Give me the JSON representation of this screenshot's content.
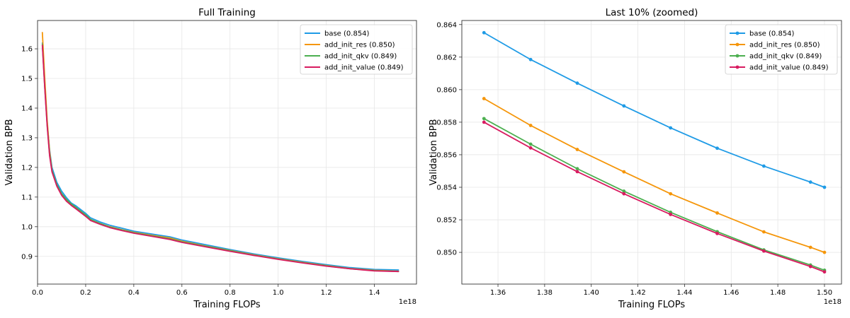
{
  "chart_data": [
    {
      "type": "line",
      "title": "Full Training",
      "xlabel": "Training FLOPs",
      "ylabel": "Validation BPB",
      "x_offset_label": "1e18",
      "xlim": [
        0.0,
        1.575
      ],
      "ylim": [
        0.8065,
        1.6955
      ],
      "xticks": [
        0.0,
        0.2,
        0.4,
        0.6,
        0.8,
        1.0,
        1.2,
        1.4
      ],
      "xtick_labels": [
        "0.0",
        "0.2",
        "0.4",
        "0.6",
        "0.8",
        "1.0",
        "1.2",
        "1.4"
      ],
      "yticks": [
        0.9,
        1.0,
        1.1,
        1.2,
        1.3,
        1.4,
        1.5,
        1.6
      ],
      "ytick_labels": [
        "0.9",
        "1.0",
        "1.1",
        "1.2",
        "1.3",
        "1.4",
        "1.5",
        "1.6"
      ],
      "grid": true,
      "legend": "top-right",
      "markers": false,
      "series": [
        {
          "name": "base (0.854)",
          "color": "#1f9be6",
          "x": [
            0.02,
            0.03,
            0.04,
            0.05,
            0.06,
            0.08,
            0.1,
            0.12,
            0.14,
            0.16,
            0.2,
            0.22,
            0.26,
            0.3,
            0.35,
            0.4,
            0.5,
            0.55,
            0.6,
            0.7,
            0.8,
            0.9,
            1.0,
            1.1,
            1.2,
            1.3,
            1.4,
            1.5
          ],
          "y": [
            1.62,
            1.48,
            1.35,
            1.26,
            1.2,
            1.15,
            1.12,
            1.098,
            1.08,
            1.07,
            1.045,
            1.03,
            1.016,
            1.005,
            0.995,
            0.985,
            0.972,
            0.966,
            0.955,
            0.939,
            0.923,
            0.908,
            0.895,
            0.883,
            0.872,
            0.862,
            0.856,
            0.854
          ]
        },
        {
          "name": "add_init_res (0.850)",
          "color": "#f5960a",
          "x": [
            0.02,
            0.03,
            0.04,
            0.05,
            0.06,
            0.08,
            0.1,
            0.12,
            0.14,
            0.16,
            0.2,
            0.22,
            0.26,
            0.3,
            0.35,
            0.4,
            0.5,
            0.55,
            0.6,
            0.7,
            0.8,
            0.9,
            1.0,
            1.1,
            1.2,
            1.3,
            1.4,
            1.5
          ],
          "y": [
            1.655,
            1.5,
            1.36,
            1.255,
            1.19,
            1.14,
            1.11,
            1.09,
            1.075,
            1.062,
            1.038,
            1.024,
            1.011,
            1.0,
            0.99,
            0.981,
            0.968,
            0.962,
            0.951,
            0.935,
            0.92,
            0.905,
            0.892,
            0.88,
            0.869,
            0.859,
            0.853,
            0.85
          ]
        },
        {
          "name": "add_init_qkv (0.849)",
          "color": "#4caf50",
          "x": [
            0.02,
            0.03,
            0.04,
            0.05,
            0.06,
            0.08,
            0.1,
            0.12,
            0.14,
            0.16,
            0.2,
            0.22,
            0.26,
            0.3,
            0.35,
            0.4,
            0.5,
            0.55,
            0.6,
            0.7,
            0.8,
            0.9,
            1.0,
            1.1,
            1.2,
            1.3,
            1.4,
            1.5
          ],
          "y": [
            1.615,
            1.47,
            1.345,
            1.245,
            1.19,
            1.142,
            1.112,
            1.092,
            1.077,
            1.065,
            1.04,
            1.025,
            1.011,
            0.999,
            0.989,
            0.98,
            0.966,
            0.959,
            0.949,
            0.934,
            0.919,
            0.904,
            0.891,
            0.879,
            0.868,
            0.858,
            0.852,
            0.849
          ]
        },
        {
          "name": "add_init_value (0.849)",
          "color": "#d81b60",
          "x": [
            0.02,
            0.03,
            0.04,
            0.05,
            0.06,
            0.08,
            0.1,
            0.12,
            0.14,
            0.16,
            0.2,
            0.22,
            0.26,
            0.3,
            0.35,
            0.4,
            0.5,
            0.55,
            0.6,
            0.7,
            0.8,
            0.9,
            1.0,
            1.1,
            1.2,
            1.3,
            1.4,
            1.5
          ],
          "y": [
            1.612,
            1.468,
            1.34,
            1.24,
            1.185,
            1.137,
            1.106,
            1.086,
            1.072,
            1.06,
            1.035,
            1.021,
            1.008,
            0.997,
            0.987,
            0.978,
            0.964,
            0.957,
            0.947,
            0.932,
            0.917,
            0.903,
            0.89,
            0.878,
            0.867,
            0.858,
            0.851,
            0.849
          ]
        }
      ]
    },
    {
      "type": "line",
      "title": "Last 10% (zoomed)",
      "xlabel": "Training FLOPs",
      "ylabel": "Validation BPB",
      "x_offset_label": "1e18",
      "xlim": [
        1.3445,
        1.5073
      ],
      "ylim": [
        0.84805,
        0.86425
      ],
      "xticks": [
        1.36,
        1.38,
        1.4,
        1.42,
        1.44,
        1.46,
        1.48,
        1.5
      ],
      "xtick_labels": [
        "1.36",
        "1.38",
        "1.40",
        "1.42",
        "1.44",
        "1.46",
        "1.48",
        "1.50"
      ],
      "yticks": [
        0.85,
        0.852,
        0.854,
        0.856,
        0.858,
        0.86,
        0.862,
        0.864
      ],
      "ytick_labels": [
        "0.850",
        "0.852",
        "0.854",
        "0.856",
        "0.858",
        "0.860",
        "0.862",
        "0.864"
      ],
      "grid": true,
      "legend": "top-right",
      "markers": true,
      "series": [
        {
          "name": "base (0.854)",
          "color": "#1f9be6",
          "x": [
            1.354,
            1.374,
            1.394,
            1.414,
            1.434,
            1.454,
            1.474,
            1.494,
            1.5
          ],
          "y": [
            0.8635,
            0.86185,
            0.8604,
            0.859,
            0.85765,
            0.8564,
            0.8553,
            0.85432,
            0.854
          ]
        },
        {
          "name": "add_init_res (0.850)",
          "color": "#f5960a",
          "x": [
            1.354,
            1.374,
            1.394,
            1.414,
            1.434,
            1.454,
            1.474,
            1.494,
            1.5
          ],
          "y": [
            0.85945,
            0.8578,
            0.85632,
            0.85495,
            0.8536,
            0.85242,
            0.85126,
            0.85031,
            0.85
          ]
        },
        {
          "name": "add_init_qkv (0.849)",
          "color": "#4caf50",
          "x": [
            1.354,
            1.374,
            1.394,
            1.414,
            1.434,
            1.454,
            1.474,
            1.494,
            1.5
          ],
          "y": [
            0.85822,
            0.85665,
            0.85514,
            0.85376,
            0.85246,
            0.85127,
            0.85015,
            0.84922,
            0.8489
          ]
        },
        {
          "name": "add_init_value (0.849)",
          "color": "#d81b60",
          "x": [
            1.354,
            1.374,
            1.394,
            1.414,
            1.434,
            1.454,
            1.474,
            1.494,
            1.5
          ],
          "y": [
            0.858,
            0.85642,
            0.85496,
            0.8536,
            0.85233,
            0.85116,
            0.85008,
            0.84913,
            0.8488
          ]
        }
      ]
    }
  ]
}
